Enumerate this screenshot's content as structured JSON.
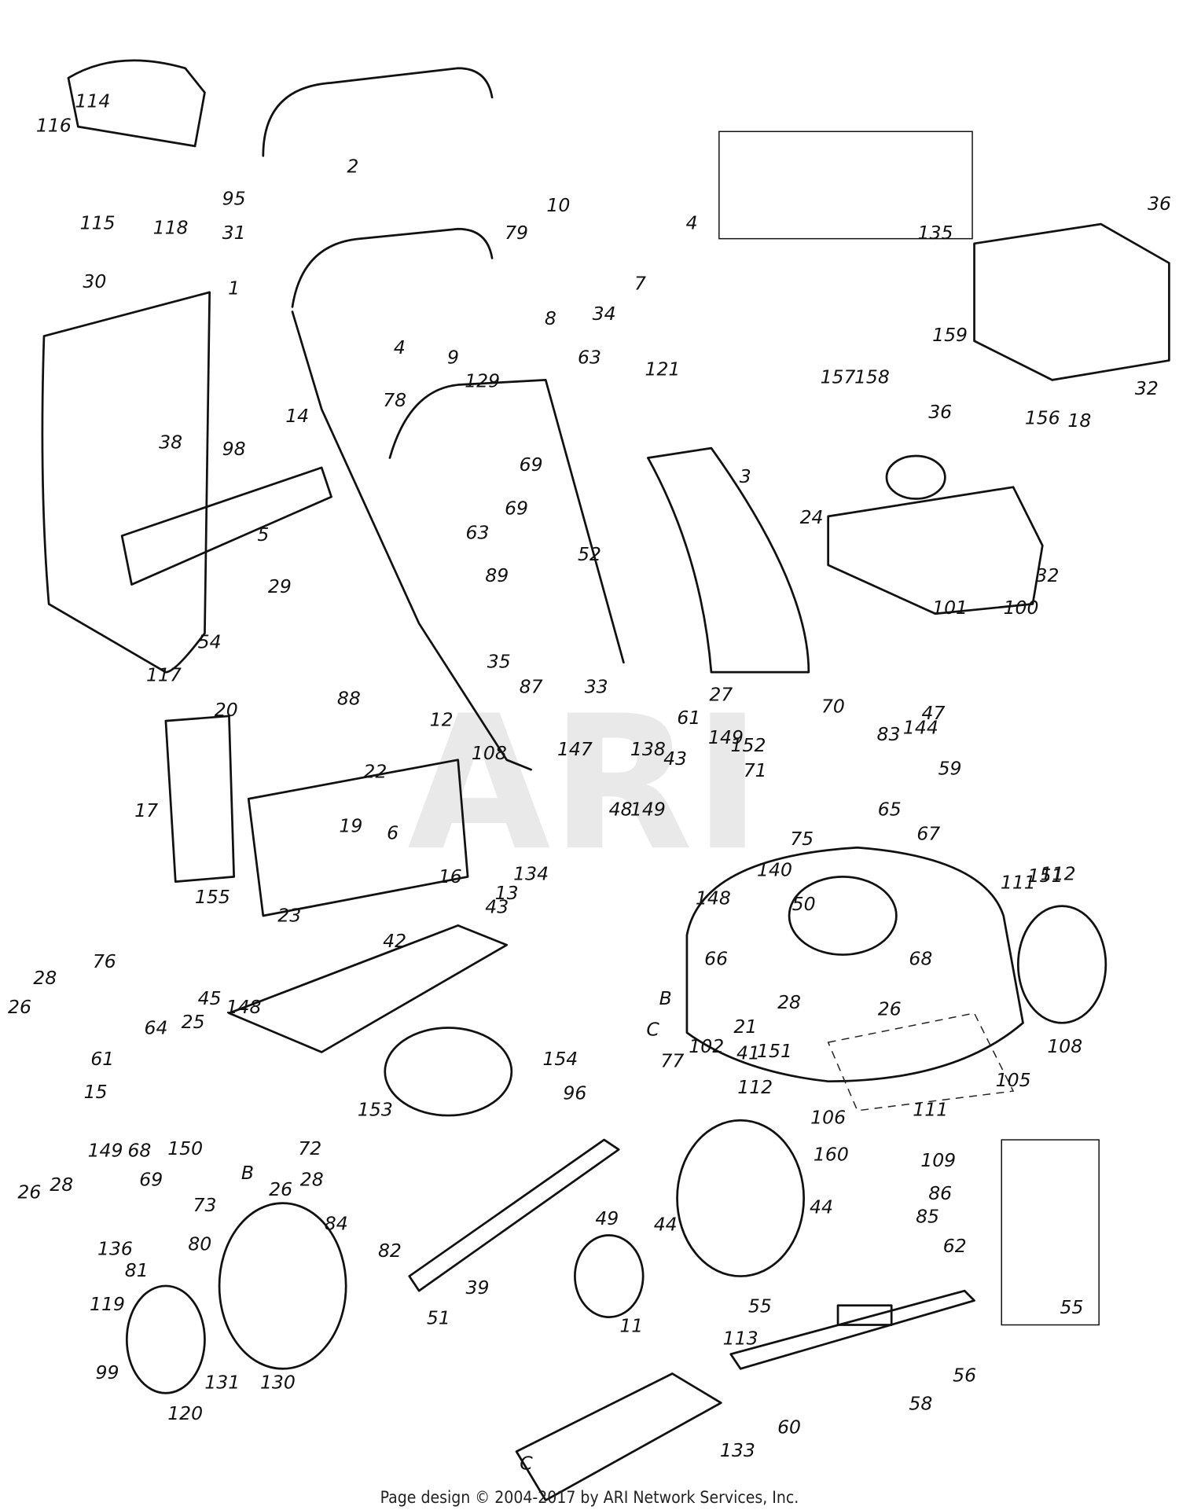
{
  "labels": [
    "114",
    "116",
    "115",
    "118",
    "31",
    "95",
    "2",
    "10",
    "4",
    "79",
    "7",
    "34",
    "8",
    "1",
    "30",
    "4",
    "9",
    "129",
    "135",
    "36",
    "159",
    "32",
    "121",
    "63",
    "78",
    "14",
    "69",
    "69",
    "63",
    "38",
    "98",
    "5",
    "3",
    "157",
    "158",
    "36",
    "156",
    "18",
    "52",
    "24",
    "32",
    "101",
    "100",
    "29",
    "89",
    "54",
    "35",
    "33",
    "27",
    "70",
    "117",
    "88",
    "87",
    "20",
    "12",
    "61",
    "149",
    "152",
    "83",
    "144",
    "47",
    "59",
    "108",
    "147",
    "138",
    "43",
    "71",
    "22",
    "17",
    "19",
    "6",
    "48",
    "149",
    "65",
    "75",
    "67",
    "155",
    "23",
    "16",
    "134",
    "13",
    "148",
    "140",
    "151",
    "111",
    "112",
    "50",
    "43",
    "42",
    "66",
    "68",
    "76",
    "28",
    "26",
    "45",
    "148",
    "64",
    "25",
    "B",
    "28",
    "26",
    "108",
    "61",
    "15",
    "21",
    "C",
    "41",
    "151",
    "77",
    "102",
    "154",
    "105",
    "112",
    "111",
    "153",
    "96",
    "106",
    "149",
    "68",
    "150",
    "72",
    "160",
    "109",
    "69",
    "73",
    "B",
    "26",
    "28",
    "26",
    "28",
    "86",
    "85",
    "80",
    "84",
    "44",
    "49",
    "44",
    "62",
    "136",
    "82",
    "81",
    "39",
    "55",
    "55",
    "119",
    "51",
    "11",
    "113",
    "56",
    "99",
    "131",
    "130",
    "58",
    "120",
    "60",
    "C",
    "133"
  ],
  "footer": "Page design © 2004-2017 by ARI Network Services, Inc."
}
